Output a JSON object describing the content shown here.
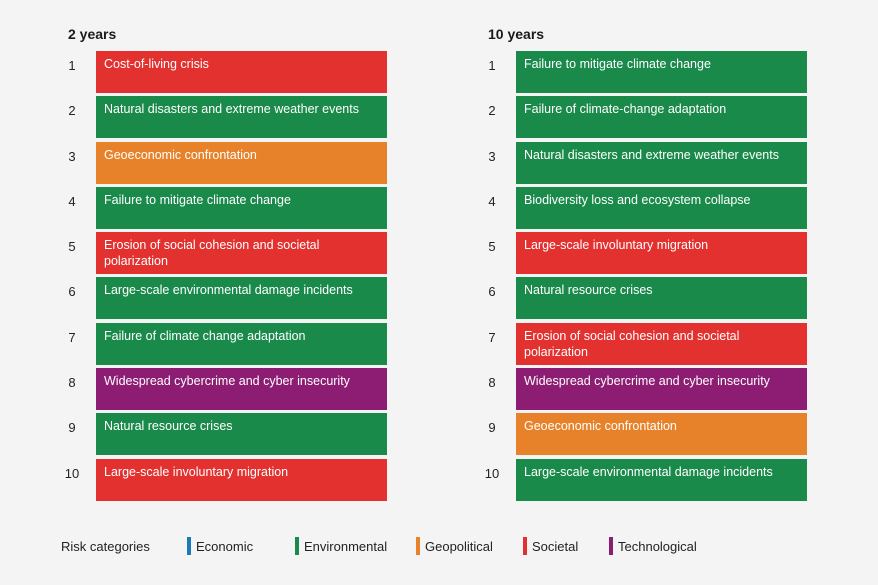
{
  "colors": {
    "Economic": "#1a7ab8",
    "Environmental": "#1a8a4a",
    "Geopolitical": "#e8822a",
    "Societal": "#e3312f",
    "Technological": "#8c1d72"
  },
  "chart_data": {
    "type": "table",
    "columns": [
      {
        "title": "2 years",
        "items": [
          {
            "rank": "1",
            "label": "Cost-of-living crisis",
            "category": "Societal"
          },
          {
            "rank": "2",
            "label": "Natural disasters and extreme weather events",
            "category": "Environmental"
          },
          {
            "rank": "3",
            "label": "Geoeconomic confrontation",
            "category": "Geopolitical"
          },
          {
            "rank": "4",
            "label": "Failure to mitigate climate change",
            "category": "Environmental"
          },
          {
            "rank": "5",
            "label": "Erosion of social cohesion and societal polarization",
            "category": "Societal"
          },
          {
            "rank": "6",
            "label": "Large-scale environmental damage incidents",
            "category": "Environmental"
          },
          {
            "rank": "7",
            "label": "Failure of climate change adaptation",
            "category": "Environmental"
          },
          {
            "rank": "8",
            "label": "Widespread cybercrime and cyber insecurity",
            "category": "Technological"
          },
          {
            "rank": "9",
            "label": "Natural resource crises",
            "category": "Environmental"
          },
          {
            "rank": "10",
            "label": "Large-scale involuntary migration",
            "category": "Societal"
          }
        ]
      },
      {
        "title": "10 years",
        "items": [
          {
            "rank": "1",
            "label": "Failure to mitigate climate change",
            "category": "Environmental"
          },
          {
            "rank": "2",
            "label": "Failure of climate-change adaptation",
            "category": "Environmental"
          },
          {
            "rank": "3",
            "label": "Natural disasters and extreme weather events",
            "category": "Environmental"
          },
          {
            "rank": "4",
            "label": "Biodiversity loss and ecosystem collapse",
            "category": "Environmental"
          },
          {
            "rank": "5",
            "label": "Large-scale involuntary migration",
            "category": "Societal"
          },
          {
            "rank": "6",
            "label": "Natural resource crises",
            "category": "Environmental"
          },
          {
            "rank": "7",
            "label": "Erosion of social cohesion and societal polarization",
            "category": "Societal"
          },
          {
            "rank": "8",
            "label": "Widespread cybercrime and cyber insecurity",
            "category": "Technological"
          },
          {
            "rank": "9",
            "label": "Geoeconomic confrontation",
            "category": "Geopolitical"
          },
          {
            "rank": "10",
            "label": "Large-scale environmental damage incidents",
            "category": "Environmental"
          }
        ]
      }
    ],
    "legend": {
      "label": "Risk categories",
      "categories": [
        "Economic",
        "Environmental",
        "Geopolitical",
        "Societal",
        "Technological"
      ]
    }
  }
}
